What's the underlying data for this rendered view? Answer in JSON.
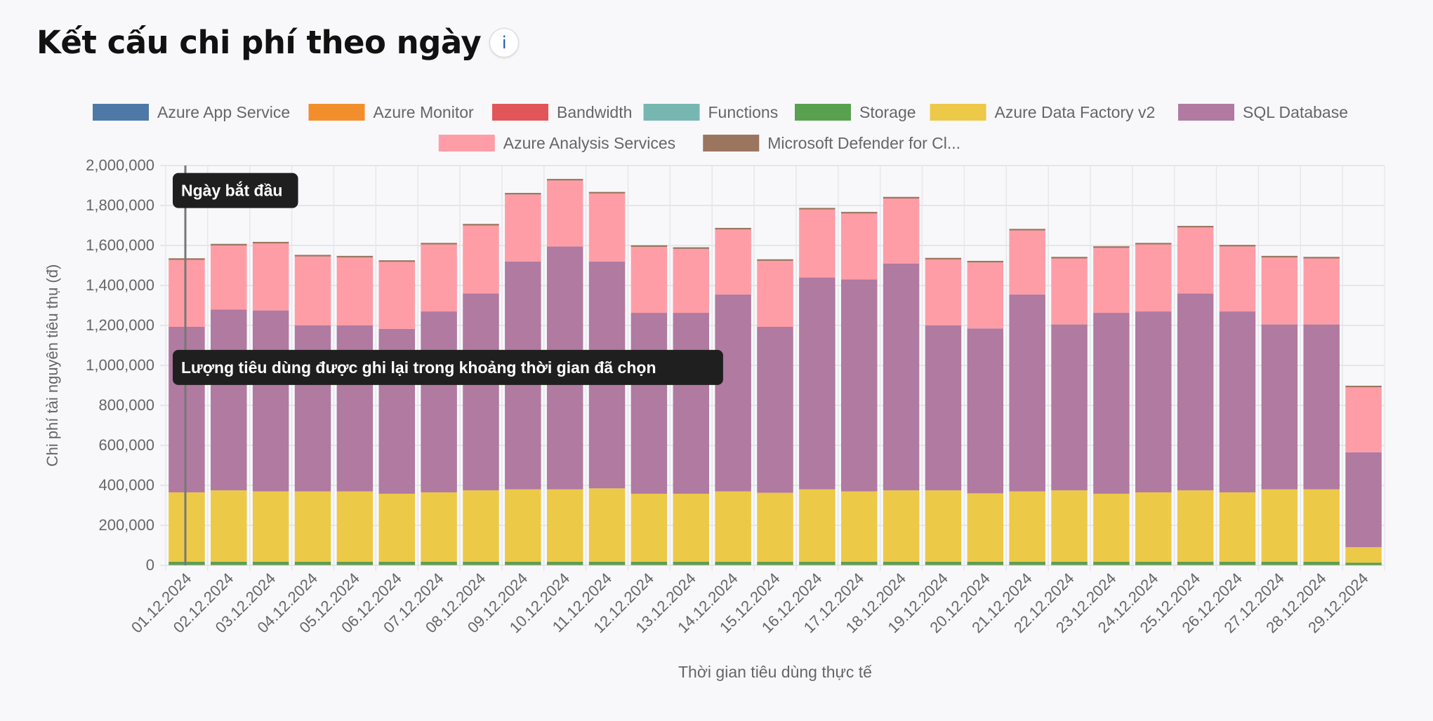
{
  "header": {
    "title": "Kết cấu chi phí theo ngày",
    "info_icon": "info-icon",
    "info_label": "i"
  },
  "colors": {
    "Azure App Service": "#4e79a7",
    "Azure Monitor": "#f28e2b",
    "Bandwidth": "#e15759",
    "Functions": "#76b7b2",
    "Storage": "#59a14f",
    "Azure Data Factory v2": "#edc948",
    "SQL Database": "#b07aa1",
    "Azure Analysis Services": "#ff9da7",
    "Microsoft Defender for Cl...": "#9c755f"
  },
  "chart_data": {
    "type": "bar",
    "stacked": true,
    "xlabel": "Thời gian tiêu dùng thực tế",
    "ylabel": "Chi phí tài nguyên tiêu thụ (đ)",
    "ylim": [
      0,
      2000000
    ],
    "yticks": [
      0,
      200000,
      400000,
      600000,
      800000,
      1000000,
      1200000,
      1400000,
      1600000,
      1800000,
      2000000
    ],
    "ytick_labels": [
      "0",
      "200,000",
      "400,000",
      "600,000",
      "800,000",
      "1,000,000",
      "1,200,000",
      "1,400,000",
      "1,600,000",
      "1,800,000",
      "2,000,000"
    ],
    "grid": true,
    "legend_position": "top",
    "categories": [
      "01.12.2024",
      "02.12.2024",
      "03.12.2024",
      "04.12.2024",
      "05.12.2024",
      "06.12.2024",
      "07.12.2024",
      "08.12.2024",
      "09.12.2024",
      "10.12.2024",
      "11.12.2024",
      "12.12.2024",
      "13.12.2024",
      "14.12.2024",
      "15.12.2024",
      "16.12.2024",
      "17.12.2024",
      "18.12.2024",
      "19.12.2024",
      "20.12.2024",
      "21.12.2024",
      "22.12.2024",
      "23.12.2024",
      "24.12.2024",
      "25.12.2024",
      "26.12.2024",
      "27.12.2024",
      "28.12.2024",
      "29.12.2024"
    ],
    "series": [
      {
        "name": "Azure App Service",
        "values": [
          1000,
          1000,
          1000,
          1000,
          1000,
          1000,
          1000,
          1000,
          1000,
          1000,
          1000,
          1000,
          1000,
          1000,
          1000,
          1000,
          1000,
          1000,
          1000,
          1000,
          1000,
          1000,
          1000,
          1000,
          1000,
          1000,
          1000,
          1000,
          500
        ]
      },
      {
        "name": "Azure Monitor",
        "values": [
          500,
          500,
          500,
          500,
          500,
          500,
          500,
          500,
          500,
          500,
          500,
          500,
          500,
          500,
          500,
          500,
          500,
          500,
          500,
          500,
          500,
          500,
          500,
          500,
          500,
          500,
          500,
          500,
          300
        ]
      },
      {
        "name": "Bandwidth",
        "values": [
          500,
          500,
          500,
          500,
          500,
          500,
          500,
          500,
          500,
          500,
          500,
          500,
          500,
          500,
          500,
          500,
          500,
          500,
          500,
          500,
          500,
          500,
          500,
          500,
          500,
          500,
          500,
          500,
          300
        ]
      },
      {
        "name": "Functions",
        "values": [
          500,
          500,
          500,
          500,
          500,
          500,
          500,
          500,
          500,
          500,
          500,
          500,
          500,
          500,
          500,
          500,
          500,
          500,
          500,
          500,
          500,
          500,
          500,
          500,
          500,
          500,
          500,
          500,
          300
        ]
      },
      {
        "name": "Storage",
        "values": [
          15000,
          15000,
          15000,
          15000,
          15000,
          15000,
          15000,
          15000,
          15000,
          15000,
          15000,
          15000,
          15000,
          15000,
          15000,
          15000,
          15000,
          15000,
          15000,
          15000,
          15000,
          15000,
          15000,
          15000,
          15000,
          15000,
          15000,
          15000,
          12000
        ]
      },
      {
        "name": "Azure Data Factory v2",
        "values": [
          347500,
          357500,
          352500,
          352500,
          352500,
          340500,
          347500,
          357500,
          362500,
          362500,
          367500,
          340500,
          340500,
          352500,
          345500,
          362500,
          352500,
          357500,
          357500,
          342500,
          352500,
          357500,
          340500,
          347500,
          357500,
          347500,
          362500,
          362500,
          77000
        ]
      },
      {
        "name": "SQL Database",
        "values": [
          828000,
          905000,
          905000,
          830000,
          830000,
          825000,
          905000,
          985000,
          1140000,
          1215000,
          1135000,
          905000,
          905000,
          985000,
          830000,
          1060000,
          1060000,
          1135000,
          825000,
          825000,
          985000,
          830000,
          905000,
          905000,
          985000,
          905000,
          825000,
          825000,
          475000
        ]
      },
      {
        "name": "Azure Analysis Services",
        "values": [
          335000,
          320000,
          335000,
          345000,
          340000,
          335000,
          335000,
          340000,
          335000,
          330000,
          340000,
          330000,
          320000,
          325000,
          330000,
          340000,
          330000,
          325000,
          330000,
          330000,
          320000,
          330000,
          325000,
          335000,
          330000,
          325000,
          335000,
          330000,
          325000
        ]
      },
      {
        "name": "Microsoft Defender for Cl...",
        "values": [
          8000,
          8000,
          8000,
          8000,
          8000,
          8000,
          8000,
          8000,
          8000,
          8000,
          8000,
          8000,
          8000,
          8000,
          8000,
          8000,
          8000,
          8000,
          8000,
          8000,
          8000,
          8000,
          8000,
          8000,
          8000,
          8000,
          8000,
          8000,
          8000
        ]
      }
    ],
    "annotations": [
      {
        "text": "Ngày bắt đầu",
        "x": "01.12.2024",
        "y": 1875000
      },
      {
        "text": "Lượng tiêu dùng được ghi lại trong khoảng thời gian đã chọn",
        "x": "01.12.2024",
        "y": 990000
      }
    ],
    "marker_line": {
      "x": "01.12.2024"
    }
  }
}
